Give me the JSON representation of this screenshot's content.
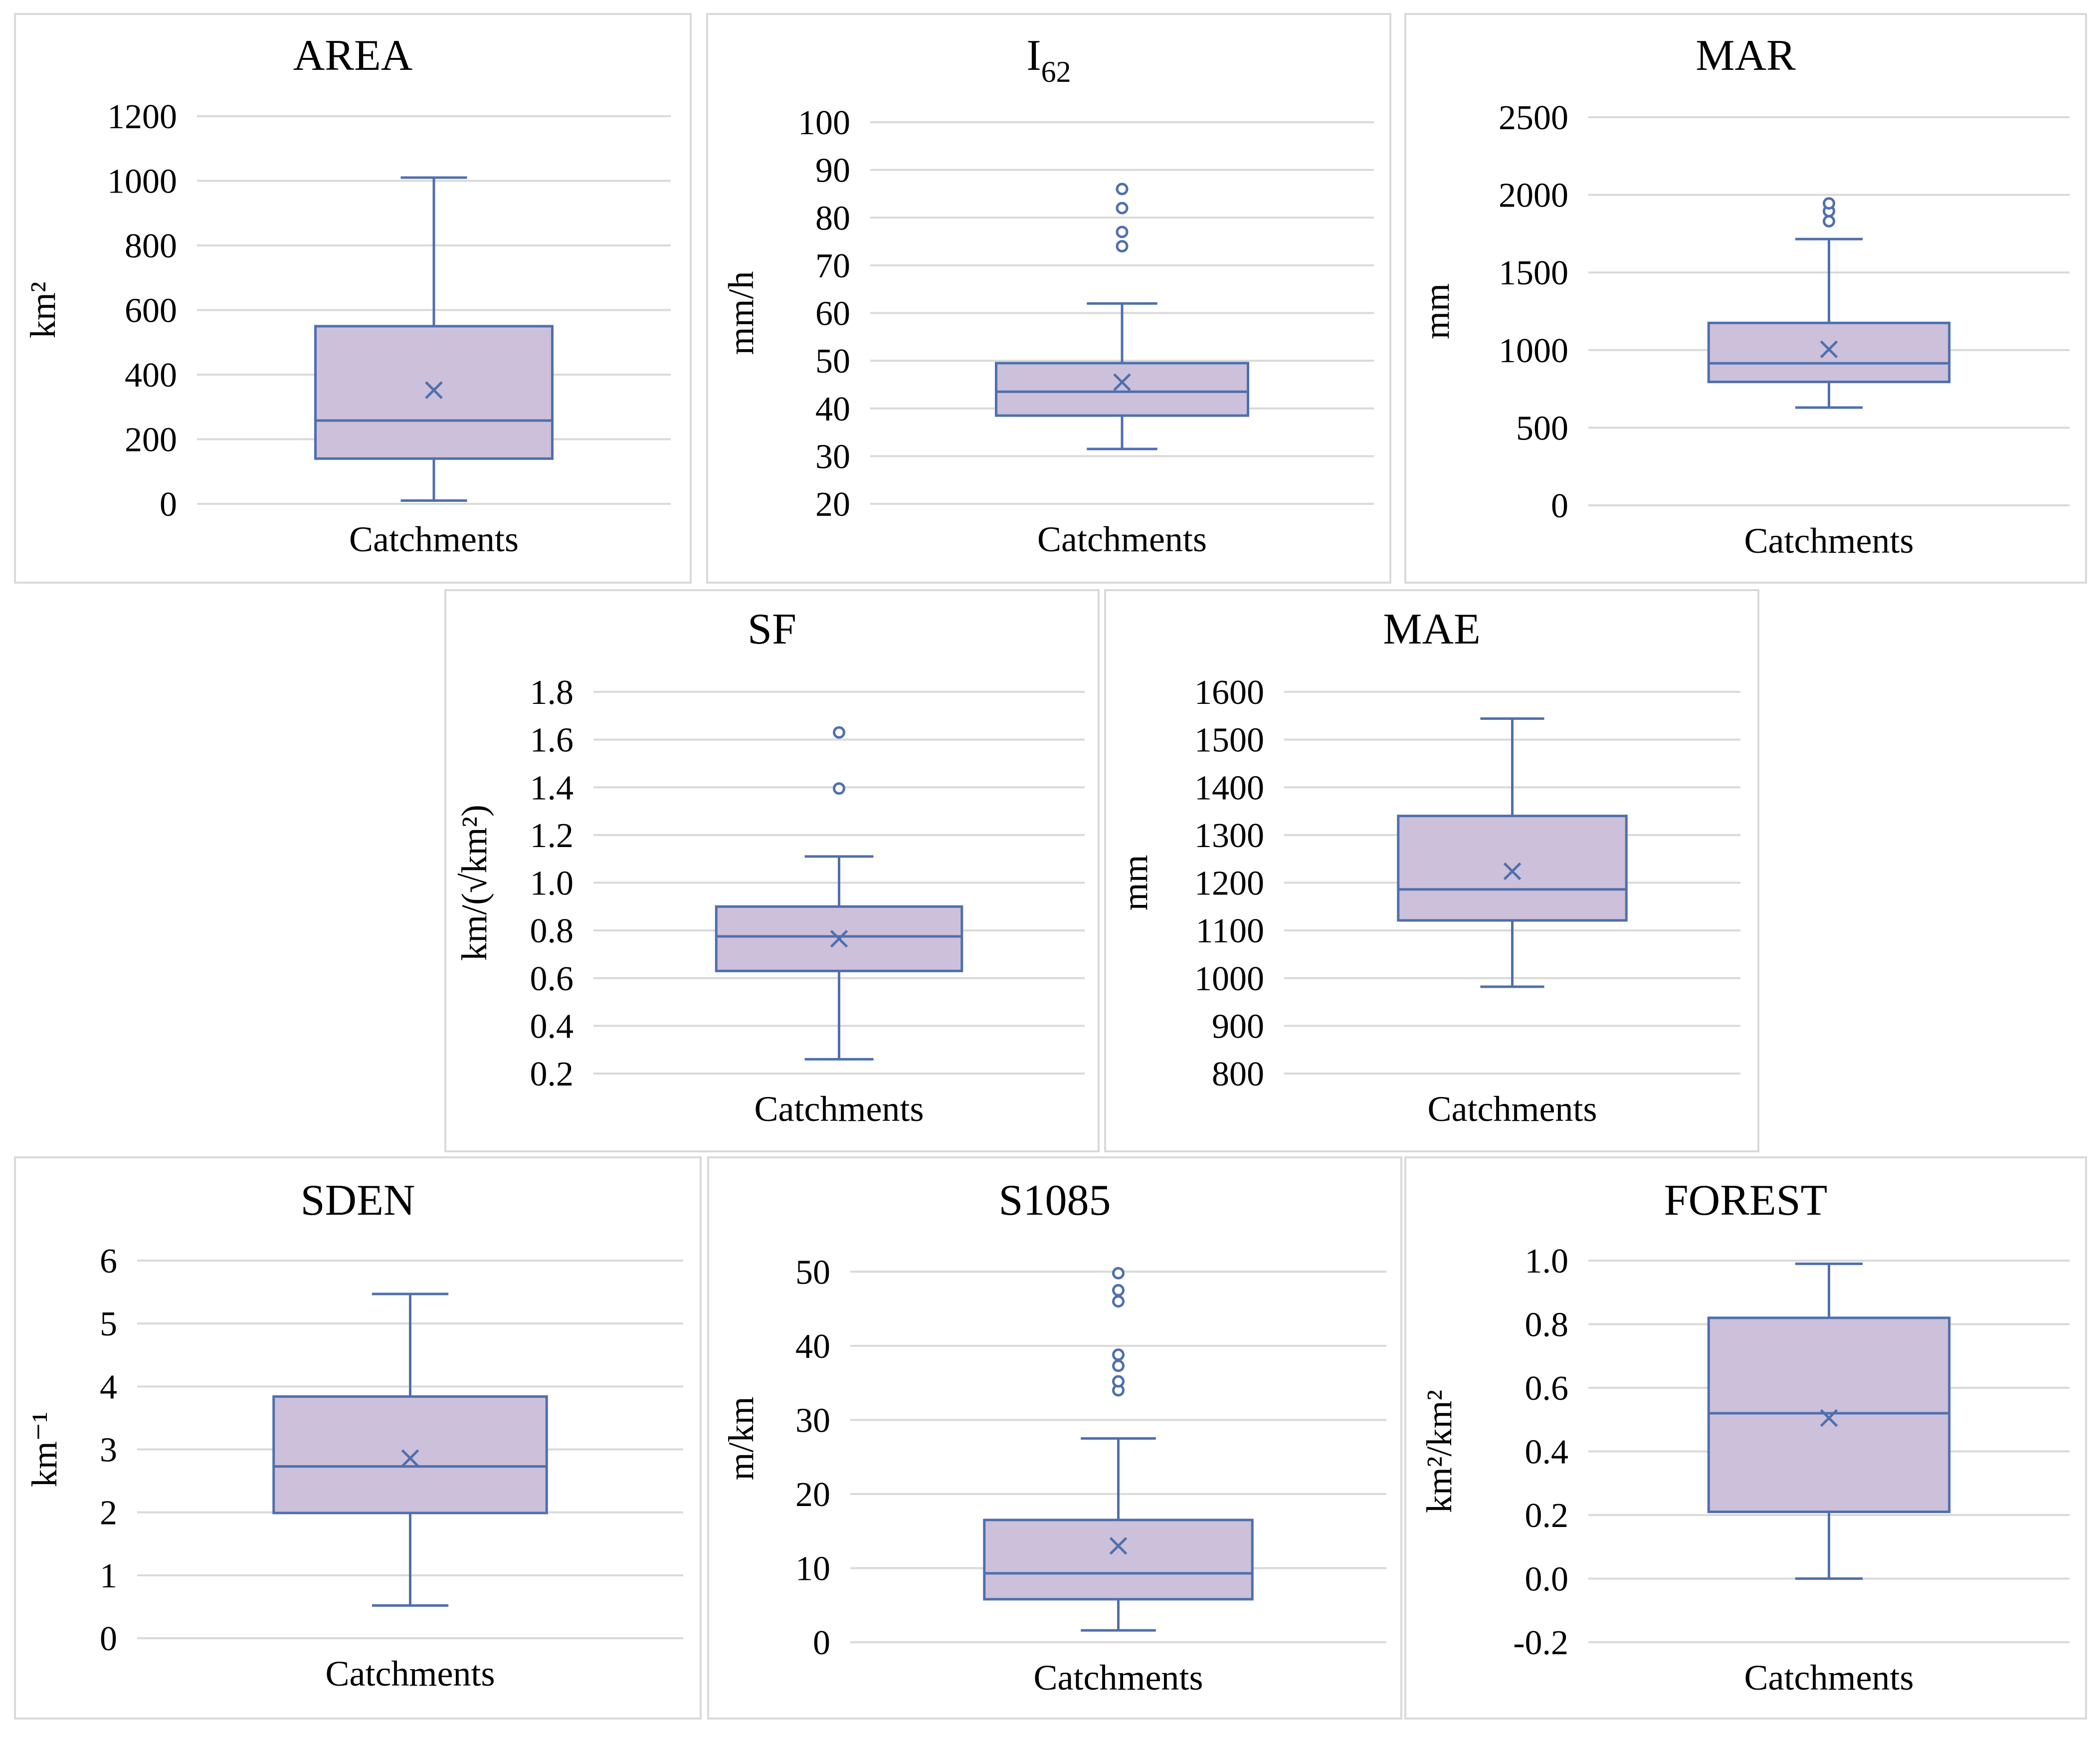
{
  "colors": {
    "box_fill": "#ccc0da",
    "box_stroke": "#4f6fad",
    "grid": "#d9d9d9",
    "frame": "#d9d9d9"
  },
  "chart_data": [
    {
      "type": "box",
      "title": "AREA",
      "title_sub": "",
      "ylabel": "km²",
      "xlabel": "Catchments",
      "ylim": [
        0,
        1200
      ],
      "yticks": [
        0,
        200,
        400,
        600,
        800,
        1000,
        1200
      ],
      "decimals": 0,
      "box": {
        "min": 10,
        "q1": 140,
        "median": 258,
        "q3": 550,
        "max": 1010,
        "mean": 352,
        "outliers": []
      }
    },
    {
      "type": "box",
      "title": "I",
      "title_sub": "62",
      "ylabel": "mm/h",
      "xlabel": "Catchments",
      "ylim": [
        20,
        100
      ],
      "yticks": [
        20,
        30,
        40,
        50,
        60,
        70,
        80,
        90,
        100
      ],
      "decimals": 0,
      "box": {
        "min": 31.5,
        "q1": 38.5,
        "median": 43.5,
        "q3": 49.5,
        "max": 62,
        "mean": 45.5,
        "outliers": [
          74,
          77,
          82,
          86
        ]
      }
    },
    {
      "type": "box",
      "title": "MAR",
      "title_sub": "",
      "ylabel": "mm",
      "xlabel": "Catchments",
      "ylim": [
        0,
        2500
      ],
      "yticks": [
        0,
        500,
        1000,
        1500,
        2000,
        2500
      ],
      "decimals": 0,
      "box": {
        "min": 630,
        "q1": 795,
        "median": 915,
        "q3": 1175,
        "max": 1715,
        "mean": 1005,
        "outliers": [
          1830,
          1895,
          1945
        ]
      }
    },
    {
      "type": "box",
      "title": "SF",
      "title_sub": "",
      "ylabel": "km/(√km²)",
      "xlabel": "Catchments",
      "ylim": [
        0.2,
        1.8
      ],
      "yticks": [
        0.2,
        0.4,
        0.6,
        0.8,
        1.0,
        1.2,
        1.4,
        1.6,
        1.8
      ],
      "decimals": 1,
      "box": {
        "min": 0.26,
        "q1": 0.63,
        "median": 0.775,
        "q3": 0.9,
        "max": 1.11,
        "mean": 0.765,
        "outliers": [
          1.395,
          1.63
        ]
      }
    },
    {
      "type": "box",
      "title": "MAE",
      "title_sub": "",
      "ylabel": "mm",
      "xlabel": "Catchments",
      "ylim": [
        800,
        1600
      ],
      "yticks": [
        800,
        900,
        1000,
        1100,
        1200,
        1300,
        1400,
        1500,
        1600
      ],
      "decimals": 0,
      "box": {
        "min": 982,
        "q1": 1121,
        "median": 1186,
        "q3": 1340,
        "max": 1544,
        "mean": 1224,
        "outliers": []
      }
    },
    {
      "type": "box",
      "title": "SDEN",
      "title_sub": "",
      "ylabel": "km⁻¹",
      "xlabel": "Catchments",
      "ylim": [
        0,
        6
      ],
      "yticks": [
        0,
        1,
        2,
        3,
        4,
        5,
        6
      ],
      "decimals": 0,
      "box": {
        "min": 0.52,
        "q1": 1.99,
        "median": 2.73,
        "q3": 3.84,
        "max": 5.47,
        "mean": 2.86,
        "outliers": []
      }
    },
    {
      "type": "box",
      "title": "S1085",
      "title_sub": "",
      "ylabel": "m/km",
      "xlabel": "Catchments",
      "ylim": [
        0,
        55
      ],
      "yticks": [
        0,
        10,
        20,
        30,
        40,
        50
      ],
      "decimals": 0,
      "box": {
        "min": 1.6,
        "q1": 5.8,
        "median": 9.3,
        "q3": 16.5,
        "max": 27.5,
        "mean": 13,
        "outliers": [
          34,
          35.2,
          37.3,
          38.8,
          46,
          47.5,
          49.8
        ]
      }
    },
    {
      "type": "box",
      "title": "FOREST",
      "title_sub": "",
      "ylabel": "km²/km²",
      "xlabel": "Catchments",
      "ylim": [
        -0.2,
        1.0
      ],
      "yticks": [
        -0.2,
        0.0,
        0.2,
        0.4,
        0.6,
        0.8,
        1.0
      ],
      "decimals": 1,
      "box": {
        "min": 0.0,
        "q1": 0.21,
        "median": 0.52,
        "q3": 0.82,
        "max": 0.99,
        "mean": 0.505,
        "outliers": []
      }
    }
  ]
}
